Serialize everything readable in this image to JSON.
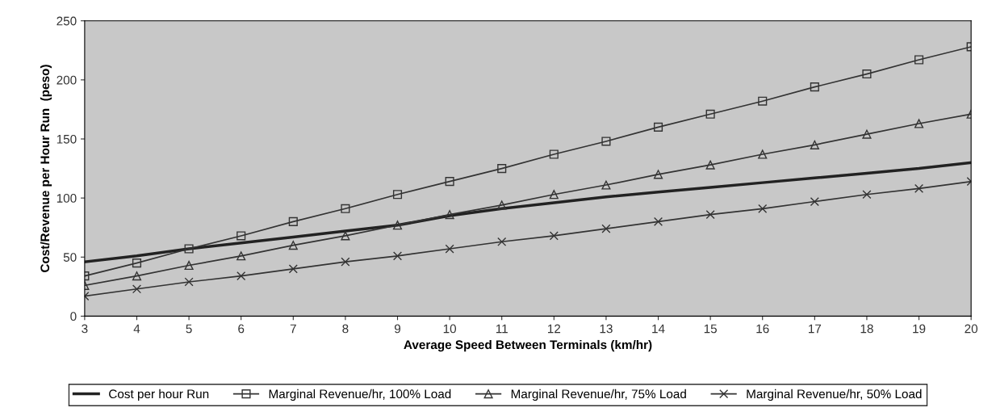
{
  "chart_data": {
    "type": "line",
    "xlabel": "Average Speed Between Terminals (km/hr)",
    "ylabel": "Cost/Revenue per Hour Run  (peso)",
    "x": [
      3,
      4,
      5,
      6,
      7,
      8,
      9,
      10,
      11,
      12,
      13,
      14,
      15,
      16,
      17,
      18,
      19,
      20
    ],
    "xlim": [
      3,
      20
    ],
    "xticks": [
      3,
      4,
      5,
      6,
      7,
      8,
      9,
      10,
      11,
      12,
      13,
      14,
      15,
      16,
      17,
      18,
      19,
      20
    ],
    "ylim": [
      0,
      250
    ],
    "yticks": [
      0,
      50,
      100,
      150,
      200,
      250
    ],
    "grid": false,
    "legend": "bottom",
    "series": [
      {
        "name": "Cost per hour Run",
        "color": "#222222",
        "marker": "none",
        "values": [
          46,
          51,
          57,
          62,
          67,
          72,
          77,
          85,
          91,
          96,
          101,
          105,
          109,
          113,
          117,
          121,
          125,
          130
        ]
      },
      {
        "name": "Marginal Revenue/hr, 100% Load",
        "color": "#333333",
        "marker": "square",
        "values": [
          34,
          45,
          57,
          68,
          80,
          91,
          103,
          114,
          125,
          137,
          148,
          160,
          171,
          182,
          194,
          205,
          217,
          228
        ]
      },
      {
        "name": "Marginal Revenue/hr, 75% Load",
        "color": "#333333",
        "marker": "triangle",
        "values": [
          26,
          34,
          43,
          51,
          60,
          68,
          77,
          86,
          94,
          103,
          111,
          120,
          128,
          137,
          145,
          154,
          163,
          171
        ]
      },
      {
        "name": "Marginal Revenue/hr, 50% Load",
        "color": "#333333",
        "marker": "cross",
        "values": [
          17,
          23,
          29,
          34,
          40,
          46,
          51,
          57,
          63,
          68,
          74,
          80,
          86,
          91,
          97,
          103,
          108,
          114
        ]
      }
    ]
  }
}
